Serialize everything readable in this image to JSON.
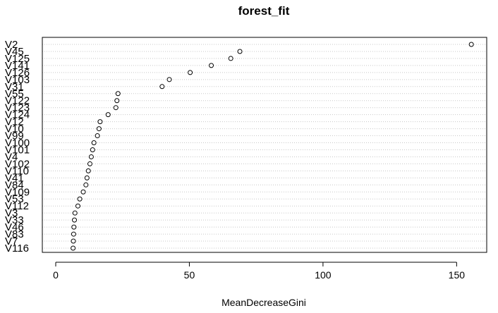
{
  "chart_data": {
    "type": "scatter",
    "title": "forest_fit",
    "xlabel": "MeanDecreaseGini",
    "ylabel": "",
    "xlim": [
      -1,
      160
    ],
    "xticks": [
      0,
      50,
      100,
      150
    ],
    "grid": true,
    "categories": [
      "V116",
      "V7",
      "V83",
      "V46",
      "V33",
      "V3",
      "V112",
      "V53",
      "V109",
      "V84",
      "V41",
      "V110",
      "V102",
      "V4",
      "V101",
      "V100",
      "V99",
      "V10",
      "V12",
      "V124",
      "V123",
      "V122",
      "V55",
      "V31",
      "V103",
      "V126",
      "V141",
      "V125",
      "V45",
      "V2"
    ],
    "values": [
      6.5,
      6.6,
      6.7,
      6.8,
      7.0,
      7.2,
      8.3,
      9.0,
      10.3,
      11.3,
      11.7,
      12.2,
      12.8,
      13.3,
      13.8,
      14.3,
      15.6,
      16.2,
      16.6,
      19.6,
      22.5,
      22.9,
      23.3,
      39.8,
      42.5,
      50.3,
      58.2,
      65.5,
      68.9,
      155.5
    ]
  }
}
